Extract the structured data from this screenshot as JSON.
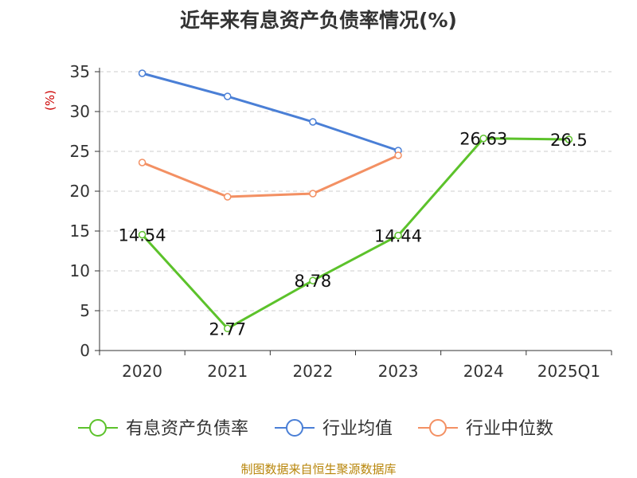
{
  "chart_data": {
    "type": "line",
    "title": "近年来有息资产负债率情况(%)",
    "ylabel": "(%)",
    "xlabel": "",
    "categories": [
      "2020",
      "2021",
      "2022",
      "2023",
      "2024",
      "2025Q1"
    ],
    "ylim": [
      0,
      35
    ],
    "yticks": [
      0,
      5,
      10,
      15,
      20,
      25,
      30,
      35
    ],
    "grid": true,
    "legend_position": "bottom",
    "series": [
      {
        "name": "有息资产负债率",
        "color": "#5cc22b",
        "values": [
          14.54,
          2.77,
          8.78,
          14.44,
          26.63,
          26.5
        ],
        "labels": [
          "14.54",
          "2.77",
          "8.78",
          "14.44",
          "26.63",
          "26.5"
        ]
      },
      {
        "name": "行业均值",
        "color": "#4a7fd6",
        "values": [
          34.8,
          31.9,
          28.7,
          25.1,
          null,
          null
        ]
      },
      {
        "name": "行业中位数",
        "color": "#f39063",
        "values": [
          23.6,
          19.3,
          19.7,
          24.5,
          null,
          null
        ]
      }
    ]
  },
  "source": "制图数据来自恒生聚源数据库",
  "colors": {
    "axis": "#333333",
    "grid": "#cccccc",
    "ylabel": "#cc0000",
    "source": "#b8860b"
  }
}
